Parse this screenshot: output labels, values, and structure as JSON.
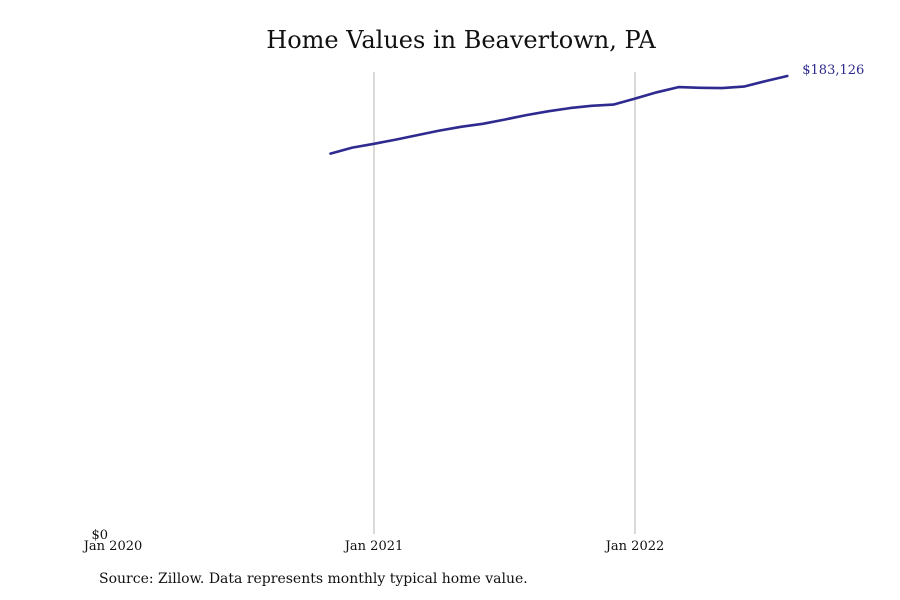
{
  "chart_data": {
    "type": "line",
    "title": "Home Values in Beavertown, PA",
    "xlabel": "",
    "ylabel": "",
    "x_ticks": [
      "Jan 2020",
      "Jan 2021",
      "Jan 2022"
    ],
    "y_ticks": [
      "$0"
    ],
    "ylim": [
      0,
      183126
    ],
    "grid": "vertical",
    "series": [
      {
        "color": "#2e2a8f",
        "x": [
          "2020-11",
          "2020-12",
          "2021-01",
          "2021-02",
          "2021-03",
          "2021-04",
          "2021-05",
          "2021-06",
          "2021-07",
          "2021-08",
          "2021-09",
          "2021-10",
          "2021-11",
          "2021-12",
          "2022-01",
          "2022-02",
          "2022-03",
          "2022-04",
          "2022-05",
          "2022-06",
          "2022-07",
          "2022-08"
        ],
        "values": [
          152100,
          154500,
          156000,
          157700,
          159500,
          161300,
          162800,
          164000,
          165700,
          167500,
          169000,
          170300,
          171200,
          171700,
          174100,
          176600,
          178700,
          178400,
          178300,
          178900,
          181100,
          183126
        ]
      }
    ],
    "end_label": "$183,126"
  },
  "footer": {
    "source": "Source: Zillow. Data represents monthly typical home value."
  }
}
